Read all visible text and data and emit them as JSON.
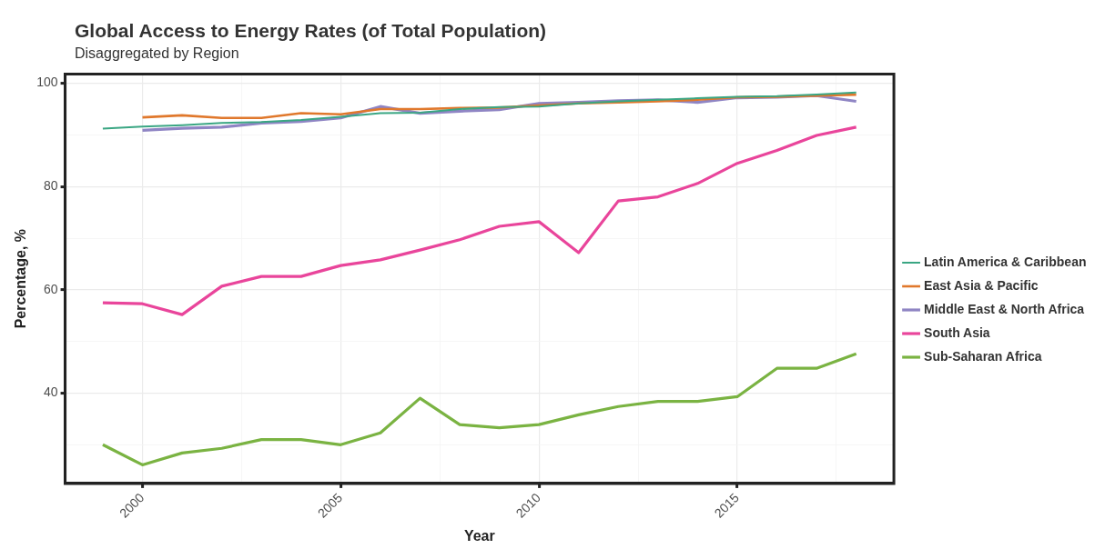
{
  "chart_data": {
    "type": "line",
    "title": "Global Access to Energy Rates (of Total Population)",
    "subtitle": "Disaggregated by Region",
    "xlabel": "Year",
    "ylabel": "Percentage, %",
    "x": [
      1999,
      2000,
      2001,
      2002,
      2003,
      2004,
      2005,
      2006,
      2007,
      2008,
      2009,
      2010,
      2011,
      2012,
      2013,
      2014,
      2015,
      2016,
      2017,
      2018
    ],
    "series": [
      {
        "name": "Latin America & Caribbean",
        "color": "#3aa683",
        "values": [
          91.2,
          91.6,
          91.9,
          92.3,
          92.5,
          92.9,
          93.5,
          94.2,
          94.3,
          95.0,
          95.4,
          95.5,
          96.1,
          96.5,
          96.8,
          97.1,
          97.4,
          97.5,
          97.8,
          98.2
        ]
      },
      {
        "name": "East Asia & Pacific",
        "color": "#e0782c",
        "values": [
          null,
          93.4,
          93.8,
          93.3,
          93.3,
          94.2,
          94.0,
          95.0,
          95.0,
          95.2,
          95.3,
          95.7,
          96.1,
          96.3,
          96.5,
          96.8,
          97.3,
          97.4,
          97.6,
          97.8
        ]
      },
      {
        "name": "Middle East & North Africa",
        "color": "#8f85c4",
        "values": [
          null,
          90.9,
          91.3,
          91.5,
          92.3,
          92.6,
          93.3,
          95.5,
          94.2,
          94.6,
          94.9,
          96.1,
          96.3,
          96.6,
          96.8,
          96.3,
          97.2,
          97.3,
          97.6,
          96.5
        ]
      },
      {
        "name": "South Asia",
        "color": "#e9459b",
        "values": [
          57.5,
          57.3,
          55.2,
          60.7,
          62.6,
          62.6,
          64.7,
          65.8,
          67.7,
          69.7,
          72.3,
          73.2,
          67.2,
          77.2,
          78.0,
          80.6,
          84.5,
          87.0,
          89.9,
          91.5
        ]
      },
      {
        "name": "Sub-Saharan Africa",
        "color": "#7ab342",
        "values": [
          30.0,
          26.1,
          28.4,
          29.3,
          31.0,
          31.0,
          30.0,
          32.3,
          39.0,
          33.9,
          33.3,
          33.9,
          35.8,
          37.4,
          38.4,
          38.4,
          39.3,
          44.8,
          44.8,
          47.6
        ]
      }
    ],
    "xlim": [
      1998.05,
      2018.95
    ],
    "xticks": [
      2000,
      {
        "value": 2002.5,
        "label": null
      },
      2005,
      {
        "value": 2007.5,
        "label": null
      },
      2010,
      {
        "value": 2012.5,
        "label": null
      },
      2015,
      {
        "value": 2017.5,
        "label": null
      }
    ],
    "ylim": [
      22.5,
      101.8
    ],
    "yticks": [
      {
        "value": 30,
        "label": null
      },
      40,
      {
        "value": 50,
        "label": null
      },
      60,
      {
        "value": 70,
        "label": null
      },
      80,
      {
        "value": 90,
        "label": null
      },
      100
    ],
    "grid": true,
    "legend": "right",
    "marker": "none",
    "line_style": "solid"
  }
}
